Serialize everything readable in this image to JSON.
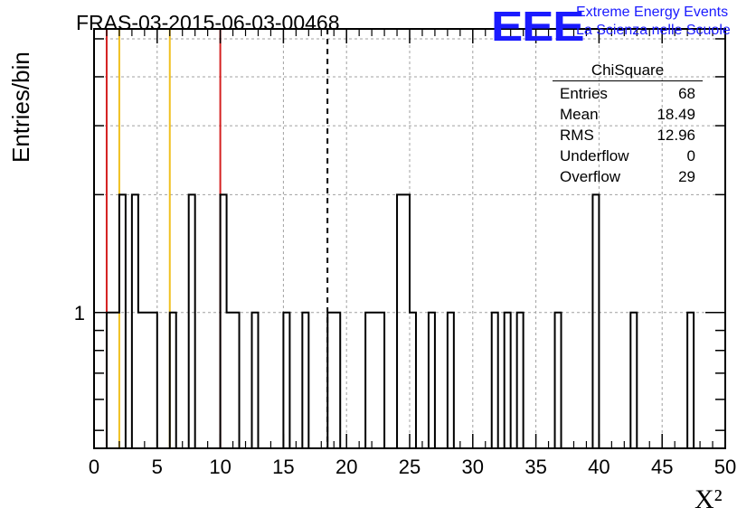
{
  "header": {
    "title": "FRAS-03-2015-06-03-00468",
    "logo_text": "EEE",
    "logo_line1": "Extreme Energy Events",
    "logo_line2": "La Scienza nelle Scuole"
  },
  "stats_box": {
    "title": "ChiSquare",
    "rows": [
      {
        "label": "Entries",
        "value": "68"
      },
      {
        "label": "Mean",
        "value": "18.49"
      },
      {
        "label": "RMS",
        "value": "12.96"
      },
      {
        "label": "Underflow",
        "value": "0"
      },
      {
        "label": "Overflow",
        "value": "29"
      }
    ]
  },
  "colors": {
    "histogram": "#000000",
    "red_lines": "#d42020",
    "yellow_lines": "#f0c020",
    "mean_line": "#000000",
    "logo": "#1a1aff",
    "grid": "#a0a0a0"
  },
  "chart_data": {
    "type": "histogram",
    "title": "FRAS-03-2015-06-03-00468",
    "xlabel": "X²",
    "ylabel": "Entries/bin",
    "xlim": [
      0,
      50
    ],
    "ylim": [
      0.45,
      5.3
    ],
    "yscale": "log",
    "grid": true,
    "x_ticks": [
      0,
      5,
      10,
      15,
      20,
      25,
      30,
      35,
      40,
      45,
      50
    ],
    "y_tick_labels": [
      {
        "value": 1,
        "label": "1"
      }
    ],
    "bin_width": 0.5,
    "bins": [
      {
        "x": 1.0,
        "count": 1
      },
      {
        "x": 1.5,
        "count": 1
      },
      {
        "x": 2.0,
        "count": 2
      },
      {
        "x": 3.0,
        "count": 2
      },
      {
        "x": 3.5,
        "count": 1
      },
      {
        "x": 4.0,
        "count": 1
      },
      {
        "x": 4.5,
        "count": 1
      },
      {
        "x": 6.0,
        "count": 1
      },
      {
        "x": 7.5,
        "count": 2
      },
      {
        "x": 10.0,
        "count": 2
      },
      {
        "x": 10.5,
        "count": 1
      },
      {
        "x": 11.0,
        "count": 1
      },
      {
        "x": 12.5,
        "count": 1
      },
      {
        "x": 15.0,
        "count": 1
      },
      {
        "x": 16.5,
        "count": 1
      },
      {
        "x": 18.5,
        "count": 1
      },
      {
        "x": 19.0,
        "count": 1
      },
      {
        "x": 21.5,
        "count": 1
      },
      {
        "x": 22.0,
        "count": 1
      },
      {
        "x": 22.5,
        "count": 1
      },
      {
        "x": 24.0,
        "count": 2
      },
      {
        "x": 24.5,
        "count": 2
      },
      {
        "x": 25.0,
        "count": 1
      },
      {
        "x": 26.5,
        "count": 1
      },
      {
        "x": 28.0,
        "count": 1
      },
      {
        "x": 31.5,
        "count": 1
      },
      {
        "x": 32.5,
        "count": 1
      },
      {
        "x": 33.5,
        "count": 1
      },
      {
        "x": 36.5,
        "count": 1
      },
      {
        "x": 39.5,
        "count": 2
      },
      {
        "x": 42.5,
        "count": 1
      },
      {
        "x": 47.0,
        "count": 1
      }
    ],
    "vertical_lines": [
      {
        "x": 1.0,
        "color": "#d42020",
        "style": "solid"
      },
      {
        "x": 2.0,
        "color": "#f0c020",
        "style": "solid"
      },
      {
        "x": 6.0,
        "color": "#f0c020",
        "style": "solid"
      },
      {
        "x": 10.0,
        "color": "#d42020",
        "style": "solid"
      },
      {
        "x": 18.49,
        "color": "#000000",
        "style": "dashed"
      }
    ]
  }
}
